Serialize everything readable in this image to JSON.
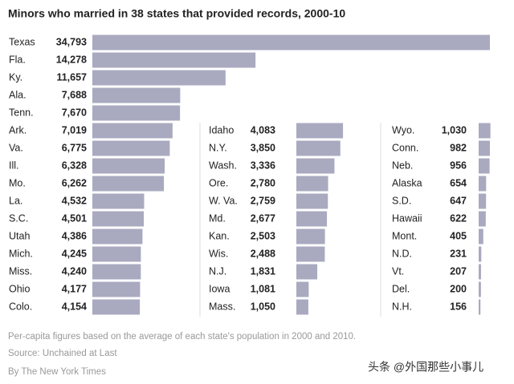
{
  "chart_data": {
    "type": "bar",
    "title": "Minors who married in 38 states that provided records, 2000-10",
    "categories": [
      "Texas",
      "Fla.",
      "Ky.",
      "Ala.",
      "Tenn.",
      "Ark.",
      "Va.",
      "Ill.",
      "Mo.",
      "La.",
      "S.C.",
      "Utah",
      "Mich.",
      "Miss.",
      "Ohio",
      "Colo.",
      "Idaho",
      "N.Y.",
      "Wash.",
      "Ore.",
      "W. Va.",
      "Md.",
      "Kan.",
      "Wis.",
      "N.J.",
      "Iowa",
      "Mass.",
      "Wyo.",
      "Conn.",
      "Neb.",
      "Alaska",
      "S.D.",
      "Hawaii",
      "Mont.",
      "N.D.",
      "Vt.",
      "Del.",
      "N.H."
    ],
    "values": [
      34793,
      14278,
      11657,
      7688,
      7670,
      7019,
      6775,
      6328,
      6262,
      4532,
      4501,
      4386,
      4245,
      4240,
      4177,
      4154,
      4083,
      3850,
      3336,
      2780,
      2759,
      2677,
      2503,
      2488,
      1831,
      1081,
      1050,
      1030,
      982,
      956,
      654,
      647,
      622,
      405,
      231,
      207,
      200,
      156
    ],
    "value_labels": [
      "34,793",
      "14,278",
      "11,657",
      "7,688",
      "7,670",
      "7,019",
      "6,775",
      "6,328",
      "6,262",
      "4,532",
      "4,501",
      "4,386",
      "4,245",
      "4,240",
      "4,177",
      "4,154",
      "4,083",
      "3,850",
      "3,336",
      "2,780",
      "2,759",
      "2,677",
      "2,503",
      "2,488",
      "1,831",
      "1,081",
      "1,050",
      "1,030",
      "982",
      "956",
      "654",
      "647",
      "622",
      "405",
      "231",
      "207",
      "200",
      "156"
    ],
    "color": "#a9aac0",
    "note": "Per-capita figures based on the average of each state's population in 2000 and 2010.",
    "source": "Source: Unchained at Last",
    "credit": "By The New York Times",
    "watermark": "头条 @外国那些小事儿"
  }
}
